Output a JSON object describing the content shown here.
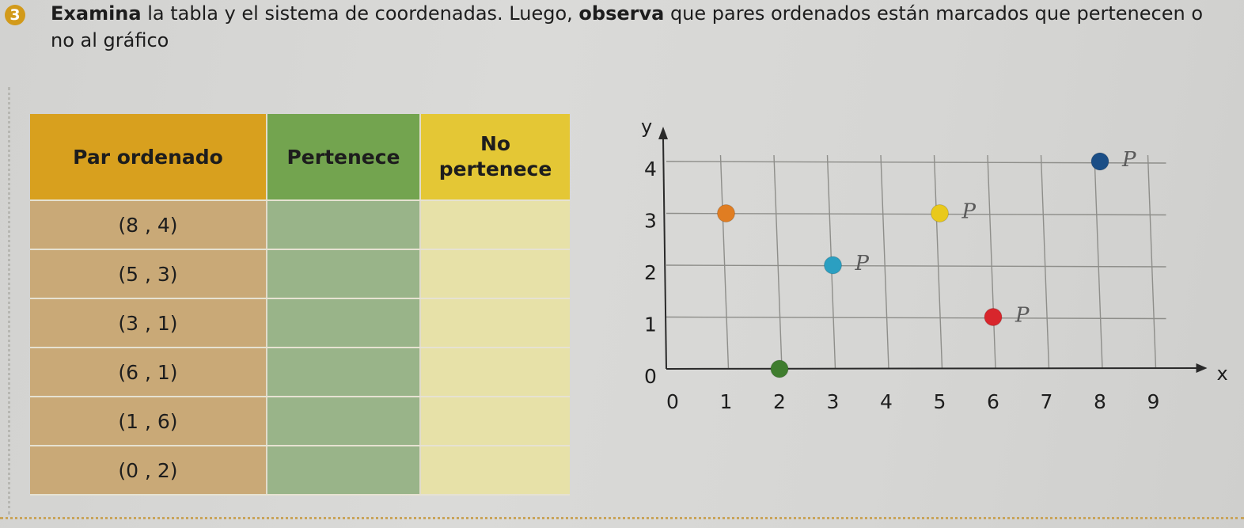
{
  "exercise": {
    "number": "3",
    "instruction_bold_1": "Examina",
    "instruction_text_1": " la tabla y el sistema de coordenadas. Luego, ",
    "instruction_bold_2": "observa",
    "instruction_text_2": " que pares ordenados están marcados que pertenecen o no al gráfico"
  },
  "table": {
    "headers": [
      "Par ordenado",
      "Pertenece",
      "No pertenece"
    ],
    "rows": [
      {
        "pair": "(8 , 4)"
      },
      {
        "pair": "(5 , 3)"
      },
      {
        "pair": "(3 , 1)"
      },
      {
        "pair": "(6 , 1)"
      },
      {
        "pair": "(1 , 6)"
      },
      {
        "pair": "(0 , 2)"
      }
    ]
  },
  "chart_data": {
    "type": "scatter",
    "xlabel": "x",
    "ylabel": "y",
    "xlim": [
      0,
      9
    ],
    "ylim": [
      0,
      4
    ],
    "x_ticks": [
      "0",
      "1",
      "2",
      "3",
      "4",
      "5",
      "6",
      "7",
      "8",
      "9"
    ],
    "y_ticks": [
      "0",
      "1",
      "2",
      "3",
      "4"
    ],
    "grid": true,
    "points": [
      {
        "x": 1,
        "y": 3,
        "color": "#e07d22"
      },
      {
        "x": 2,
        "y": 0,
        "color": "#3f7d2e"
      },
      {
        "x": 3,
        "y": 2,
        "color": "#2b9fc1"
      },
      {
        "x": 5,
        "y": 3,
        "color": "#e9c91b"
      },
      {
        "x": 6,
        "y": 1,
        "color": "#d8262c"
      },
      {
        "x": 8,
        "y": 4,
        "color": "#1b4e86"
      }
    ],
    "handwritten_marks": [
      {
        "text": "P",
        "near": [
          8,
          4
        ]
      },
      {
        "text": "P",
        "near": [
          5,
          3
        ]
      },
      {
        "text": "P",
        "near": [
          3,
          2
        ]
      },
      {
        "text": "P",
        "near": [
          6,
          1
        ]
      }
    ]
  }
}
